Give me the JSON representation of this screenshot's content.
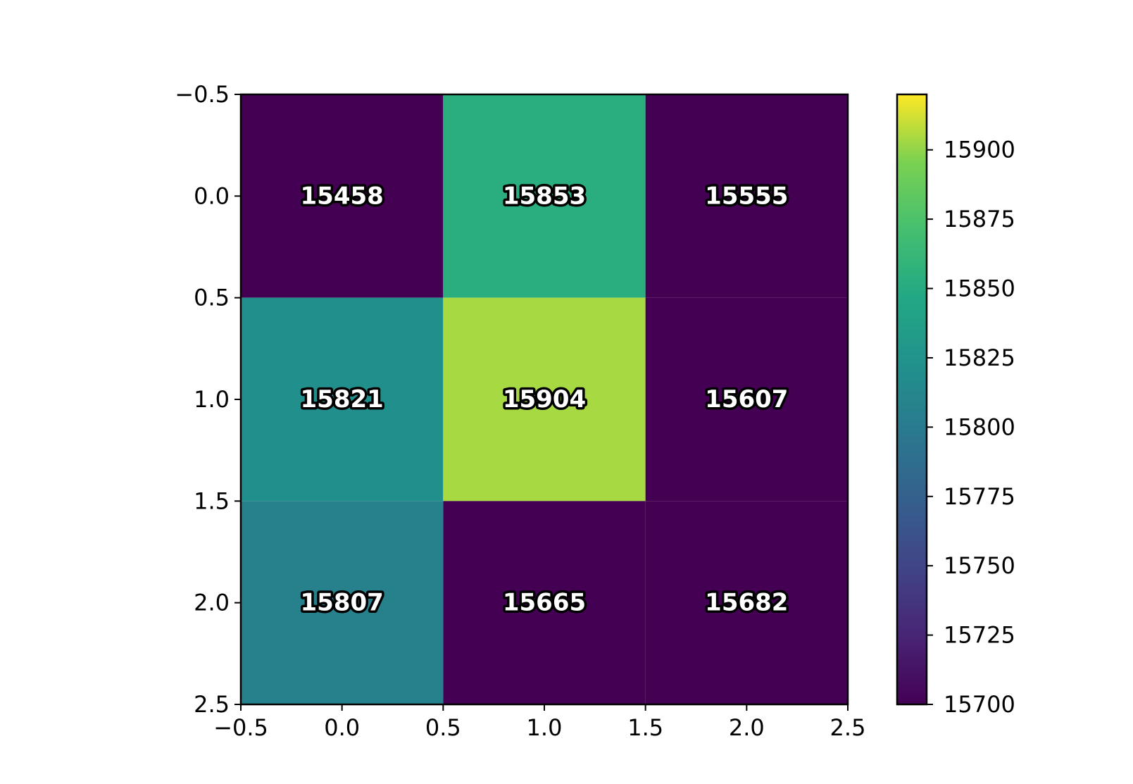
{
  "chart_data": {
    "type": "heatmap",
    "title": "",
    "xlabel": "",
    "ylabel": "",
    "rows": 3,
    "cols": 3,
    "values": [
      [
        15458,
        15853,
        15555
      ],
      [
        15821,
        15904,
        15607
      ],
      [
        15807,
        15665,
        15682
      ]
    ],
    "cell_labels": [
      [
        "15458",
        "15853",
        "15555"
      ],
      [
        "15821",
        "15904",
        "15607"
      ],
      [
        "15807",
        "15665",
        "15682"
      ]
    ],
    "xlim": [
      -0.5,
      2.5
    ],
    "ylim": [
      -0.5,
      2.5
    ],
    "y_inverted": true,
    "x_ticks": [
      -0.5,
      0.0,
      0.5,
      1.0,
      1.5,
      2.0,
      2.5
    ],
    "x_tick_labels": [
      "−0.5",
      "0.0",
      "0.5",
      "1.0",
      "1.5",
      "2.0",
      "2.5"
    ],
    "y_ticks": [
      -0.5,
      0.0,
      0.5,
      1.0,
      1.5,
      2.0,
      2.5
    ],
    "y_tick_labels": [
      "−0.5",
      "0.0",
      "0.5",
      "1.0",
      "1.5",
      "2.0",
      "2.5"
    ],
    "colormap": "viridis",
    "color_range": [
      15700,
      15920
    ],
    "colorbar": {
      "ticks": [
        15700,
        15725,
        15750,
        15775,
        15800,
        15825,
        15850,
        15875,
        15900
      ],
      "tick_labels": [
        "15700",
        "15725",
        "15750",
        "15775",
        "15800",
        "15825",
        "15850",
        "15875",
        "15900"
      ],
      "placement": "right"
    },
    "grid": false
  }
}
